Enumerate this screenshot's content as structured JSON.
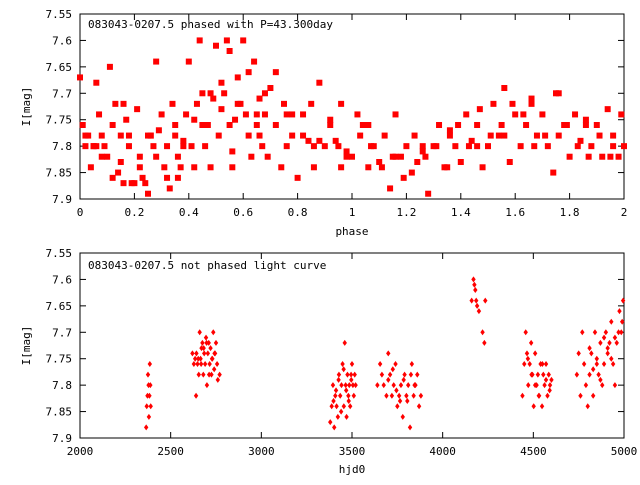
{
  "chart_data": [
    {
      "type": "scatter",
      "title": "083043-0207.5 phased with P=43.300day",
      "xlabel": "phase",
      "ylabel": "I[mag]",
      "xlim": [
        0,
        2
      ],
      "ylim": [
        7.9,
        7.55
      ],
      "y_inverted": true,
      "xticks": [
        "0",
        "0.2",
        "0.4",
        "0.6",
        "0.8",
        "1",
        "1.2",
        "1.4",
        "1.6",
        "1.8",
        "2"
      ],
      "yticks": [
        "7.55",
        "7.6",
        "7.65",
        "7.7",
        "7.75",
        "7.8",
        "7.85",
        "7.9"
      ],
      "marker": "filled-square",
      "color": "#ff0000",
      "series": [
        {
          "x": [
            0.0,
            0.01,
            0.02,
            0.03,
            0.04,
            0.05,
            0.06,
            0.07,
            0.08,
            0.09,
            0.1,
            0.11,
            0.12,
            0.13,
            0.14,
            0.15,
            0.16,
            0.17,
            0.18,
            0.19,
            0.2,
            0.21,
            0.22,
            0.23,
            0.24,
            0.25,
            0.26,
            0.27,
            0.28,
            0.29,
            0.3,
            0.31,
            0.32,
            0.33,
            0.34,
            0.35,
            0.36,
            0.37,
            0.38,
            0.39,
            0.4,
            0.41,
            0.42,
            0.43,
            0.44,
            0.45,
            0.46,
            0.47,
            0.48,
            0.49,
            0.5,
            0.51,
            0.52,
            0.53,
            0.54,
            0.55,
            0.56,
            0.57,
            0.58,
            0.59,
            0.6,
            0.61,
            0.62,
            0.63,
            0.64,
            0.65,
            0.66,
            0.67,
            0.68,
            0.69,
            0.7,
            0.72,
            0.74,
            0.76,
            0.78,
            0.8,
            0.82,
            0.84,
            0.86,
            0.88,
            0.9,
            0.92,
            0.94,
            0.96,
            0.98,
            1.0,
            1.02,
            1.04,
            1.06,
            1.08,
            1.1,
            1.12,
            1.14,
            1.16,
            1.18,
            1.2,
            1.22,
            1.24,
            1.26,
            1.28,
            1.3,
            1.32,
            1.34,
            1.36,
            1.38,
            1.4,
            1.42,
            1.44,
            1.46,
            1.48,
            1.5,
            1.52,
            1.54,
            1.56,
            1.58,
            1.6,
            1.62,
            1.64,
            1.66,
            1.68,
            1.7,
            1.72,
            1.74,
            1.76,
            1.78,
            1.8,
            1.82,
            1.84,
            1.86,
            1.88,
            1.9,
            1.92,
            1.94,
            1.96,
            1.98,
            2.0,
            0.02,
            0.05,
            0.08,
            0.12,
            0.15,
            0.18,
            0.22,
            0.25,
            0.28,
            0.32,
            0.35,
            0.38,
            0.42,
            0.45,
            0.48,
            0.52,
            0.55,
            0.58,
            0.62,
            0.65,
            0.68,
            0.72,
            0.75,
            0.78,
            0.82,
            0.85,
            0.88,
            0.92,
            0.95,
            0.98,
            1.03,
            1.07,
            1.11,
            1.15,
            1.19,
            1.23,
            1.27,
            1.31,
            1.35,
            1.39,
            1.43,
            1.47,
            1.51,
            1.55,
            1.59,
            1.63,
            1.67,
            1.71,
            1.75,
            1.79,
            1.83,
            1.87,
            1.91,
            1.95,
            1.99,
            0.06,
            0.16,
            0.26,
            0.36,
            0.46,
            0.56,
            0.66,
            0.76,
            0.86,
            0.96,
            1.06,
            1.16,
            1.26,
            1.36,
            1.46,
            1.56,
            1.66,
            1.76,
            1.86,
            1.96
          ],
          "y": [
            7.67,
            7.76,
            7.8,
            7.78,
            7.84,
            7.8,
            7.68,
            7.74,
            7.78,
            7.8,
            7.82,
            7.65,
            7.76,
            7.72,
            7.85,
            7.83,
            7.87,
            7.75,
            7.78,
            7.87,
            7.87,
            7.73,
            7.82,
            7.86,
            7.87,
            7.89,
            7.78,
            7.8,
            7.64,
            7.77,
            7.74,
            7.84,
            7.8,
            7.88,
            7.72,
            7.76,
            7.82,
            7.84,
            7.79,
            7.74,
            7.64,
            7.8,
            7.75,
            7.72,
            7.6,
            7.7,
            7.8,
            7.76,
            7.84,
            7.71,
            7.61,
            7.78,
            7.73,
            7.7,
            7.6,
            7.76,
            7.81,
            7.75,
            7.67,
            7.72,
            7.6,
            7.74,
            7.78,
            7.82,
            7.64,
            7.76,
            7.71,
            7.8,
            7.74,
            7.82,
            7.69,
            7.76,
            7.84,
            7.8,
            7.78,
            7.86,
            7.74,
            7.79,
            7.84,
            7.68,
            7.8,
            7.75,
            7.79,
            7.72,
            7.81,
            7.82,
            7.74,
            7.76,
            7.84,
            7.8,
            7.83,
            7.78,
            7.88,
            7.74,
            7.82,
            7.8,
            7.85,
            7.83,
            7.81,
            7.89,
            7.8,
            7.76,
            7.84,
            7.77,
            7.8,
            7.83,
            7.74,
            7.79,
            7.76,
            7.84,
            7.8,
            7.72,
            7.78,
            7.69,
            7.83,
            7.74,
            7.8,
            7.76,
            7.71,
            7.78,
            7.74,
            7.8,
            7.85,
            7.7,
            7.76,
            7.82,
            7.74,
            7.79,
            7.75,
            7.8,
            7.76,
            7.82,
            7.73,
            7.78,
            7.82,
            7.8,
            7.78,
            7.8,
            7.82,
            7.86,
            7.78,
            7.8,
            7.84,
            7.78,
            7.82,
            7.86,
            7.78,
            7.8,
            7.84,
            7.76,
            7.7,
            7.68,
            7.62,
            7.72,
            7.66,
            7.74,
            7.7,
            7.66,
            7.72,
            7.74,
            7.78,
            7.72,
            7.79,
            7.76,
            7.8,
            7.82,
            7.78,
            7.8,
            7.84,
            7.82,
            7.86,
            7.78,
            7.82,
            7.8,
            7.84,
            7.76,
            7.8,
            7.73,
            7.78,
            7.76,
            7.72,
            7.74,
            7.8,
            7.78,
            7.7,
            7.76,
            7.8,
            7.82,
            7.78,
            7.82,
            7.74,
            7.8,
            7.72,
            7.78,
            7.86,
            7.76,
            7.84,
            7.78,
            7.74,
            7.8,
            7.84,
            7.76,
            7.82,
            7.8,
            7.78,
            7.8,
            7.78,
            7.72,
            7.78,
            7.76,
            7.8
          ]
        }
      ]
    },
    {
      "type": "scatter",
      "title": "083043-0207.5 not phased light curve",
      "xlabel": "hjd0",
      "ylabel": "I[mag]",
      "xlim": [
        2000,
        5000
      ],
      "ylim": [
        7.9,
        7.55
      ],
      "y_inverted": true,
      "xticks": [
        "2000",
        "2500",
        "3000",
        "3500",
        "4000",
        "4500",
        "5000"
      ],
      "yticks": [
        "7.55",
        "7.6",
        "7.65",
        "7.7",
        "7.75",
        "7.8",
        "7.85",
        "7.9"
      ],
      "marker": "small-diamond",
      "color": "#ff0000",
      "series": [
        {
          "x": [
            2365,
            2368,
            2372,
            2375,
            2378,
            2380,
            2383,
            2385,
            2388,
            2390,
            2620,
            2628,
            2635,
            2642,
            2648,
            2655,
            2660,
            2665,
            2670,
            2675,
            2680,
            2685,
            2690,
            2695,
            2700,
            2705,
            2710,
            2715,
            2720,
            2725,
            2730,
            2735,
            2740,
            2745,
            2750,
            2760,
            2640,
            2652,
            2668,
            2682,
            2698,
            2712,
            2728,
            2742,
            2756,
            2770,
            3380,
            3388,
            3395,
            3402,
            3408,
            3415,
            3422,
            3428,
            3435,
            3442,
            3448,
            3455,
            3460,
            3465,
            3470,
            3475,
            3480,
            3485,
            3490,
            3495,
            3500,
            3505,
            3510,
            3515,
            3520,
            3398,
            3412,
            3426,
            3440,
            3454,
            3468,
            3482,
            3496,
            3640,
            3655,
            3665,
            3675,
            3690,
            3700,
            3710,
            3720,
            3730,
            3740,
            3750,
            3760,
            3770,
            3780,
            3790,
            3800,
            3810,
            3820,
            3830,
            3840,
            3850,
            3860,
            3870,
            3880,
            3700,
            3725,
            3745,
            3765,
            3785,
            3805,
            3825,
            3845,
            4160,
            4170,
            4175,
            4180,
            4185,
            4190,
            4200,
            4220,
            4230,
            4235,
            4440,
            4450,
            4458,
            4465,
            4472,
            4480,
            4488,
            4495,
            4502,
            4510,
            4518,
            4525,
            4532,
            4540,
            4548,
            4555,
            4562,
            4570,
            4578,
            4585,
            4592,
            4600,
            4470,
            4490,
            4510,
            4530,
            4550,
            4570,
            4590,
            4740,
            4750,
            4760,
            4770,
            4780,
            4790,
            4800,
            4810,
            4820,
            4830,
            4840,
            4850,
            4860,
            4870,
            4880,
            4890,
            4900,
            4910,
            4920,
            4930,
            4940,
            4950,
            4960,
            4970,
            4975,
            4985,
            4990,
            4995,
            4810,
            4830,
            4850,
            4870,
            4890,
            4910,
            4930,
            4950
          ],
          "y": [
            7.88,
            7.84,
            7.82,
            7.78,
            7.8,
            7.86,
            7.82,
            7.76,
            7.8,
            7.84,
            7.74,
            7.76,
            7.75,
            7.74,
            7.76,
            7.78,
            7.7,
            7.75,
            7.73,
            7.72,
            7.78,
            7.74,
            7.76,
            7.71,
            7.8,
            7.74,
            7.72,
            7.76,
            7.73,
            7.78,
            7.75,
            7.7,
            7.77,
            7.74,
            7.72,
            7.79,
            7.82,
            7.75,
            7.76,
            7.73,
            7.72,
            7.78,
            7.75,
            7.74,
            7.76,
            7.78,
            7.87,
            7.84,
            7.8,
            7.88,
            7.82,
            7.84,
            7.86,
            7.78,
            7.82,
            7.8,
            7.76,
            7.84,
            7.72,
            7.8,
            7.86,
            7.78,
            7.82,
            7.8,
            7.84,
            7.78,
            7.76,
            7.8,
            7.82,
            7.78,
            7.8,
            7.83,
            7.81,
            7.79,
            7.85,
            7.77,
            7.81,
            7.83,
            7.79,
            7.8,
            7.76,
            7.78,
            7.8,
            7.82,
            7.74,
            7.78,
            7.82,
            7.8,
            7.76,
            7.84,
            7.82,
            7.8,
            7.86,
            7.78,
            7.82,
            7.8,
            7.88,
            7.76,
            7.82,
            7.8,
            7.78,
            7.84,
            7.82,
            7.79,
            7.77,
            7.81,
            7.83,
            7.79,
            7.83,
            7.78,
            7.8,
            7.64,
            7.6,
            7.61,
            7.62,
            7.64,
            7.65,
            7.66,
            7.7,
            7.72,
            7.64,
            7.82,
            7.76,
            7.7,
            7.74,
            7.8,
            7.76,
            7.72,
            7.78,
            7.84,
            7.74,
            7.8,
            7.78,
            7.82,
            7.76,
            7.84,
            7.78,
            7.8,
            7.76,
            7.82,
            7.78,
            7.8,
            7.79,
            7.75,
            7.78,
            7.8,
            7.82,
            7.76,
            7.79,
            7.81,
            7.78,
            7.74,
            7.82,
            7.7,
            7.76,
            7.8,
            7.84,
            7.78,
            7.74,
            7.82,
            7.7,
            7.76,
            7.78,
            7.72,
            7.8,
            7.76,
            7.7,
            7.74,
            7.72,
            7.68,
            7.76,
            7.8,
            7.72,
            7.7,
            7.66,
            7.7,
            7.68,
            7.64,
            7.73,
            7.77,
            7.75,
            7.79,
            7.71,
            7.73,
            7.75,
            7.71
          ]
        }
      ]
    }
  ]
}
